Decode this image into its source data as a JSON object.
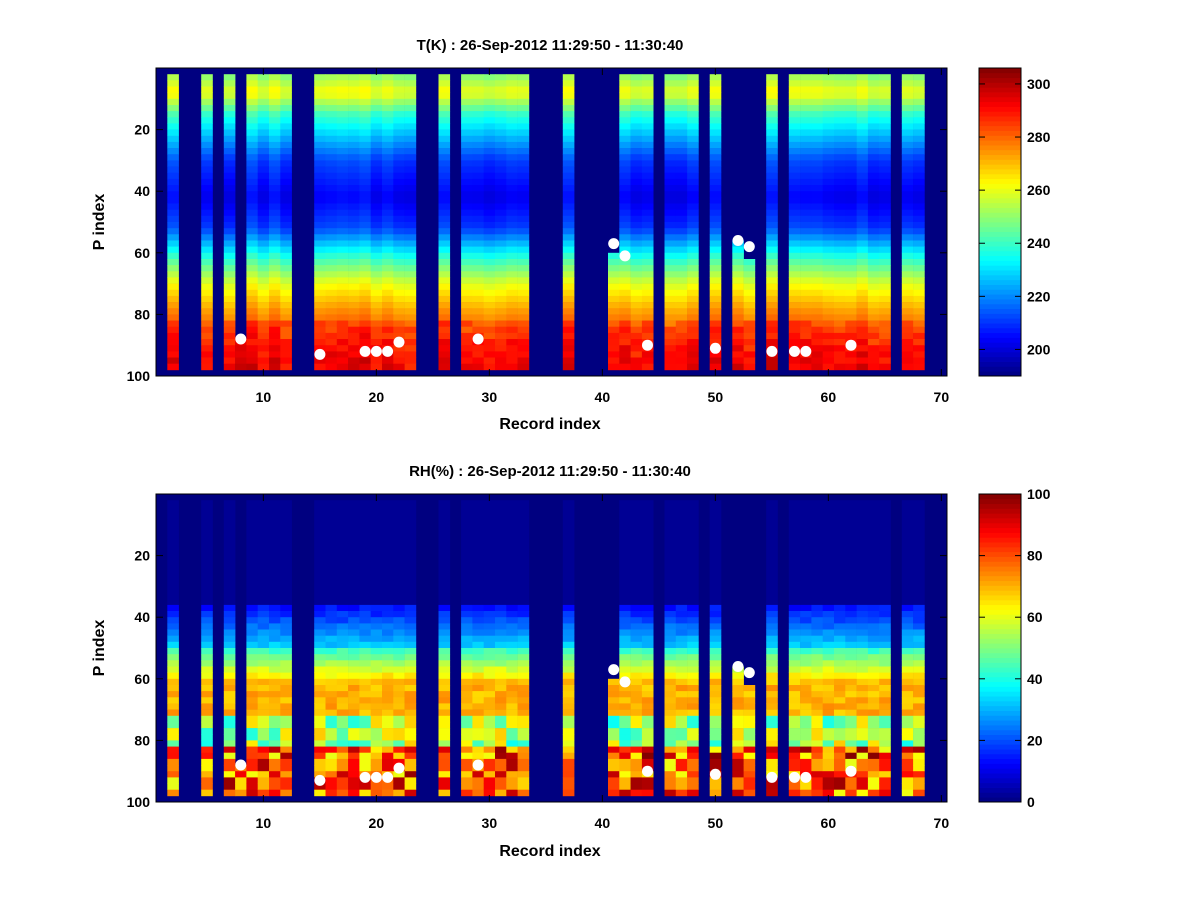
{
  "chart_data": [
    {
      "type": "heatmap",
      "title": "T(K) : 26-Sep-2012 11:29:50 - 11:30:40",
      "xlabel": "Record index",
      "ylabel": "P index",
      "xlim": [
        0.5,
        70.5
      ],
      "ylim": [
        100,
        0
      ],
      "x_ticks": [
        "10",
        "20",
        "30",
        "40",
        "50",
        "60",
        "70"
      ],
      "y_ticks": [
        "20",
        "40",
        "60",
        "80",
        "100"
      ],
      "colorbar": {
        "colormap": "jet",
        "range": [
          190,
          306
        ],
        "ticks": [
          "200",
          "220",
          "240",
          "260",
          "280",
          "300"
        ]
      },
      "missing_records": [
        1,
        3,
        4,
        6,
        13,
        14,
        24,
        25,
        27,
        34,
        35,
        36,
        38,
        39,
        40,
        45,
        49,
        51,
        54,
        56,
        66,
        69,
        70
      ],
      "partial_top_records": [
        {
          "record": 8,
          "top": 88
        },
        {
          "record": 41,
          "top": 60
        },
        {
          "record": 52,
          "top": 56
        },
        {
          "record": 53,
          "top": 62
        }
      ],
      "surface_markers": [
        [
          8,
          88
        ],
        [
          15,
          93
        ],
        [
          19,
          92
        ],
        [
          20,
          92
        ],
        [
          21,
          92
        ],
        [
          22,
          89
        ],
        [
          29,
          88
        ],
        [
          41,
          57
        ],
        [
          42,
          61
        ],
        [
          44,
          90
        ],
        [
          50,
          91
        ],
        [
          52,
          56
        ],
        [
          53,
          58
        ],
        [
          55,
          92
        ],
        [
          57,
          92
        ],
        [
          58,
          92
        ],
        [
          62,
          90
        ]
      ]
    },
    {
      "type": "heatmap",
      "title": "RH(%) : 26-Sep-2012 11:29:50 - 11:30:40",
      "xlabel": "Record index",
      "ylabel": "P index",
      "xlim": [
        0.5,
        70.5
      ],
      "ylim": [
        100,
        0
      ],
      "x_ticks": [
        "10",
        "20",
        "30",
        "40",
        "50",
        "60",
        "70"
      ],
      "y_ticks": [
        "20",
        "40",
        "60",
        "80",
        "100"
      ],
      "colorbar": {
        "colormap": "jet",
        "range": [
          0,
          100
        ],
        "ticks": [
          "0",
          "20",
          "40",
          "60",
          "80",
          "100"
        ]
      },
      "missing_records": [
        1,
        3,
        4,
        6,
        13,
        14,
        24,
        25,
        27,
        34,
        35,
        36,
        38,
        39,
        40,
        45,
        49,
        51,
        54,
        56,
        66,
        69,
        70
      ],
      "partial_top_records": [
        {
          "record": 8,
          "top": 88
        },
        {
          "record": 41,
          "top": 60
        },
        {
          "record": 52,
          "top": 56
        },
        {
          "record": 53,
          "top": 62
        }
      ],
      "surface_markers": [
        [
          8,
          88
        ],
        [
          15,
          93
        ],
        [
          19,
          92
        ],
        [
          20,
          92
        ],
        [
          21,
          92
        ],
        [
          22,
          89
        ],
        [
          29,
          88
        ],
        [
          41,
          57
        ],
        [
          42,
          61
        ],
        [
          44,
          90
        ],
        [
          50,
          91
        ],
        [
          52,
          56
        ],
        [
          53,
          58
        ],
        [
          55,
          92
        ],
        [
          57,
          92
        ],
        [
          58,
          92
        ],
        [
          62,
          90
        ]
      ]
    }
  ]
}
